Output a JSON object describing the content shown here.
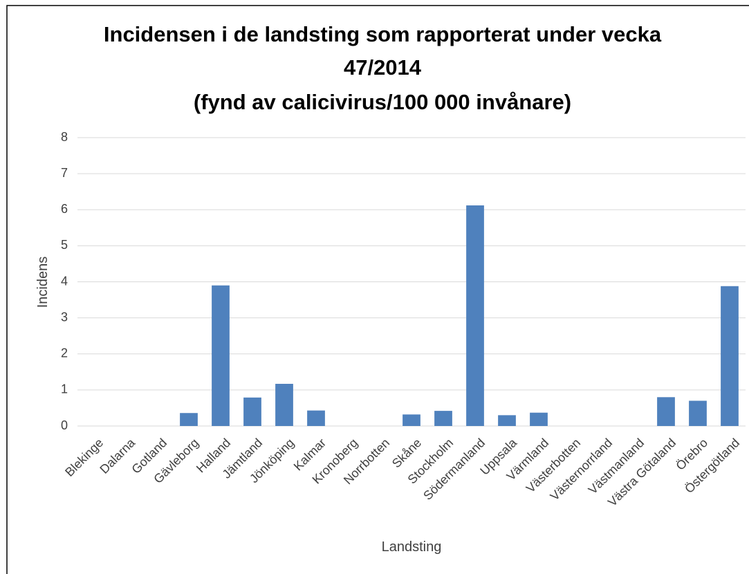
{
  "chart_data": {
    "type": "bar",
    "title": [
      "Incidensen i de landsting som rapporterat under vecka",
      "47/2014",
      "(fynd av calicivirus/100 000 invånare)"
    ],
    "x_label": "Landsting",
    "y_label": "Incidens",
    "categories": [
      "Blekinge",
      "Dalarna",
      "Gotland",
      "Gävleborg",
      "Halland",
      "Jämtland",
      "Jönköping",
      "Kalmar",
      "Kronoberg",
      "Norrbotten",
      "Skåne",
      "Stockholm",
      "Södermanland",
      "Uppsala",
      "Värmland",
      "Västerbotten",
      "Västernorrland",
      "Västmanland",
      "Västra Götaland",
      "Örebro",
      "Östergötland"
    ],
    "values": [
      0,
      0,
      0,
      0.36,
      3.9,
      0.79,
      1.17,
      0.43,
      0,
      0,
      0.32,
      0.42,
      6.12,
      0.3,
      0.37,
      0,
      0,
      0,
      0.8,
      0.7,
      3.88
    ],
    "color": "#4f81bd",
    "ylim": [
      0,
      8
    ],
    "yticks": [
      0,
      1,
      2,
      3,
      4,
      5,
      6,
      7,
      8
    ],
    "grid": true
  }
}
